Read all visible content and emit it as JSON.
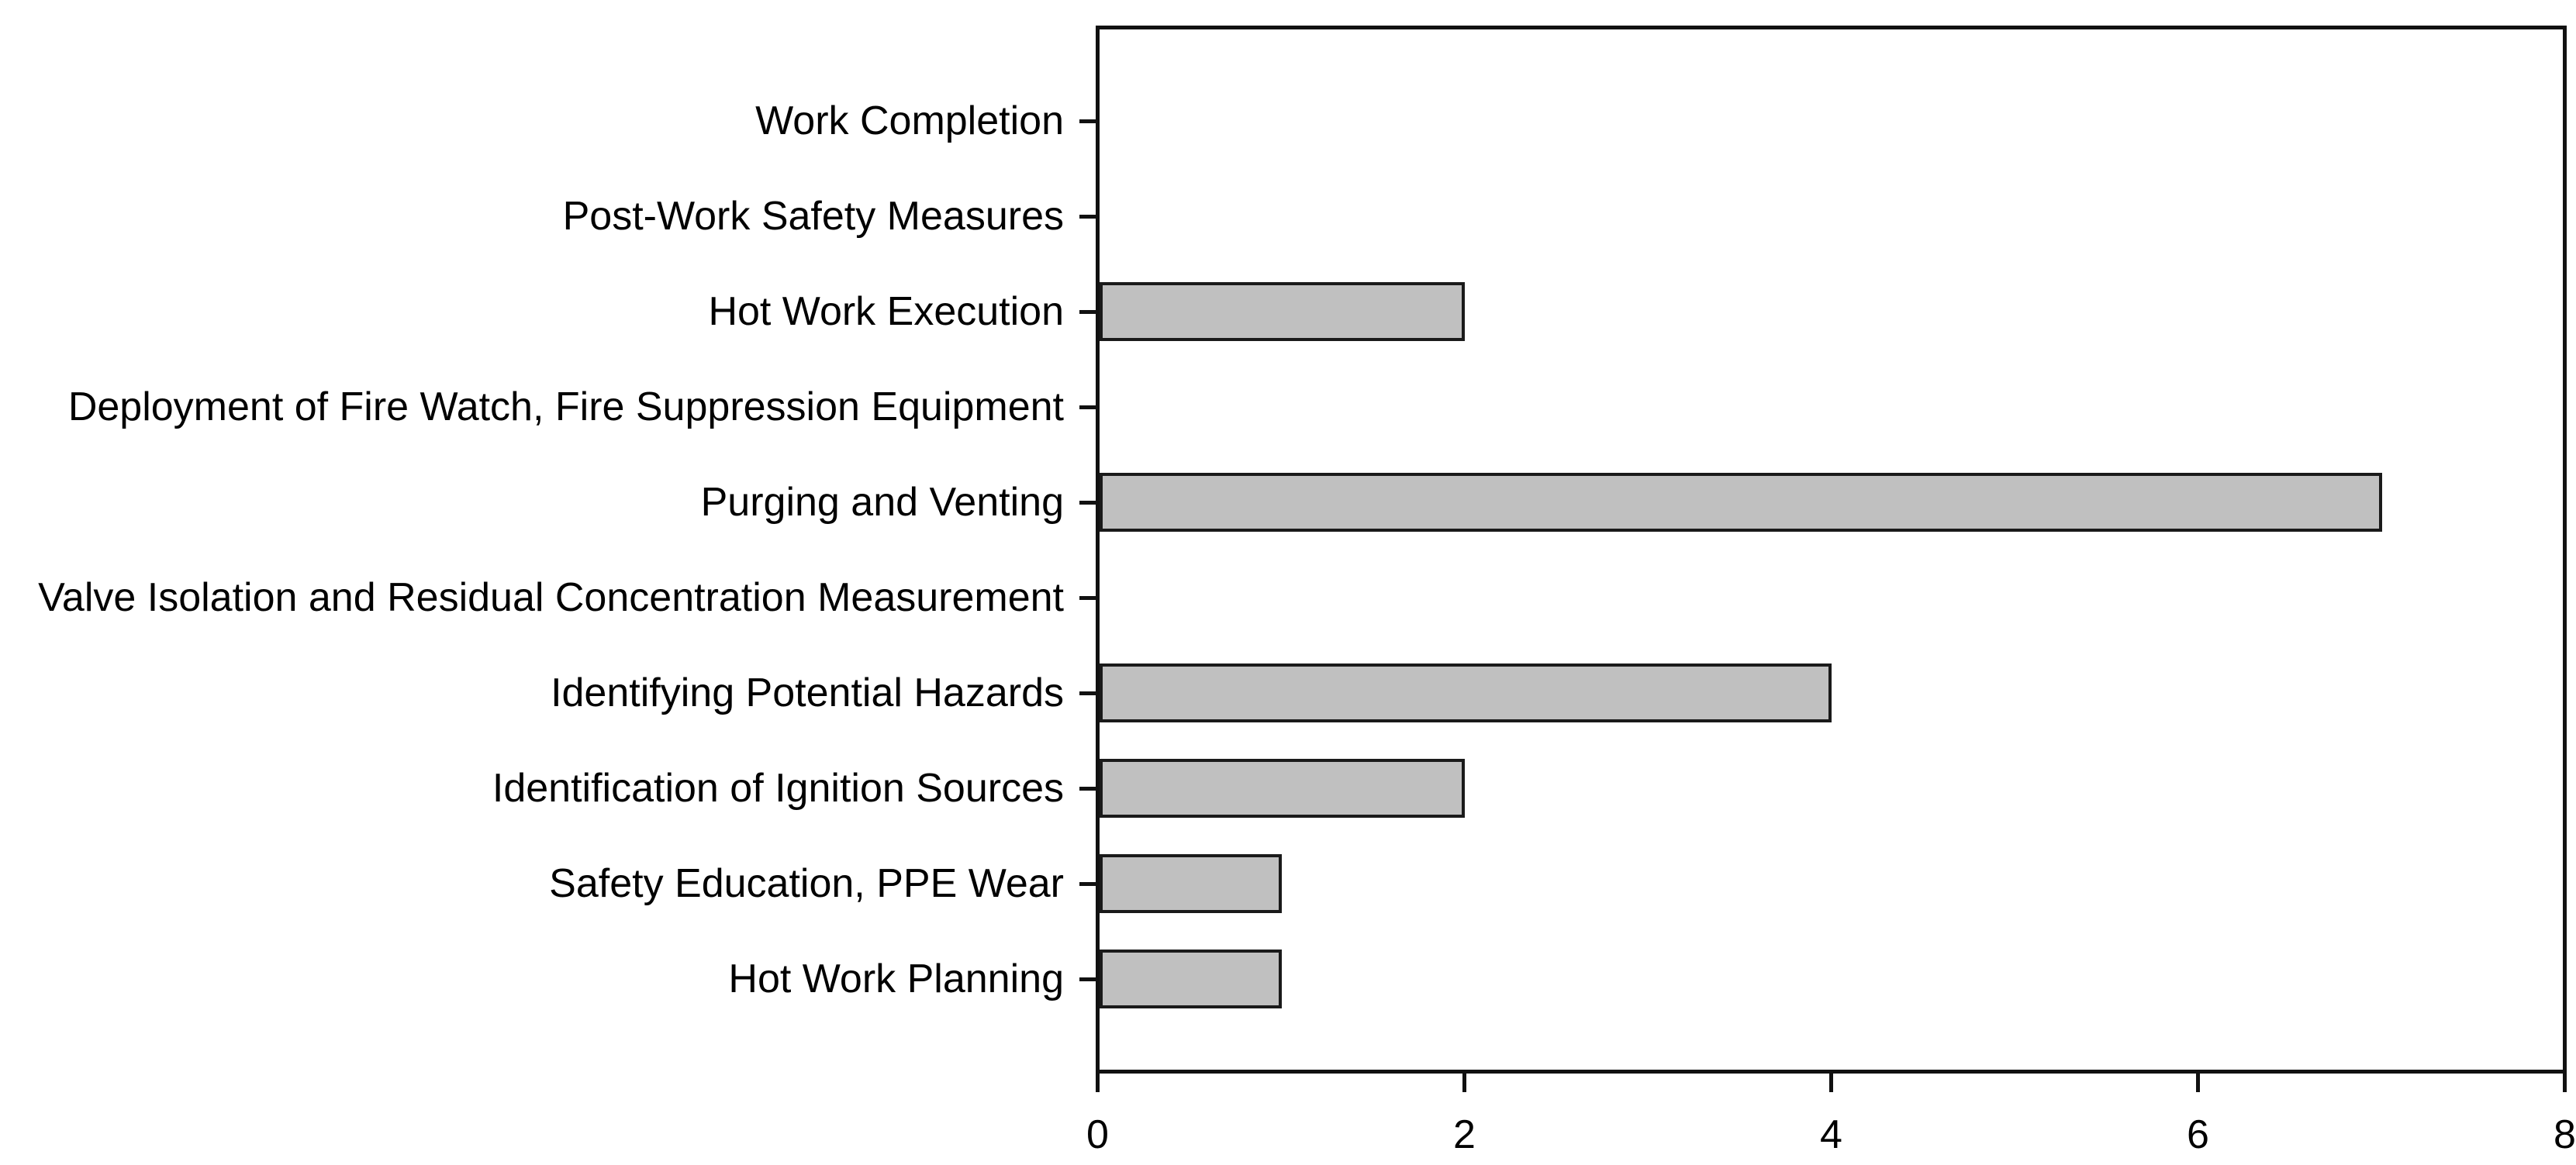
{
  "chart_data": {
    "type": "bar",
    "orientation": "horizontal",
    "title": "",
    "xlabel": "",
    "ylabel": "",
    "categories_top_to_bottom": [
      "Work Completion",
      "Post-Work Safety Measures",
      "Hot Work Execution",
      "Deployment of Fire Watch, Fire Suppression Equipment",
      "Purging and Venting",
      "Valve Isolation and Residual Concentration Measurement",
      "Identifying Potential Hazards",
      "Identification of Ignition Sources",
      "Safety Education, PPE Wear",
      "Hot Work Planning"
    ],
    "values": [
      0,
      0,
      2,
      0,
      7,
      0,
      4,
      2,
      1,
      1
    ],
    "xlim": [
      0,
      8
    ],
    "x_ticks": [
      "0",
      "2",
      "4",
      "6",
      "8"
    ],
    "x_tick_values": [
      0,
      2,
      4,
      6,
      8
    ],
    "grid": false,
    "legend": null,
    "bar_fill_color": "#c0c0c0",
    "bar_edge_color": "#1a1a1a",
    "axis_color": "#111111",
    "background_color": "#ffffff"
  }
}
